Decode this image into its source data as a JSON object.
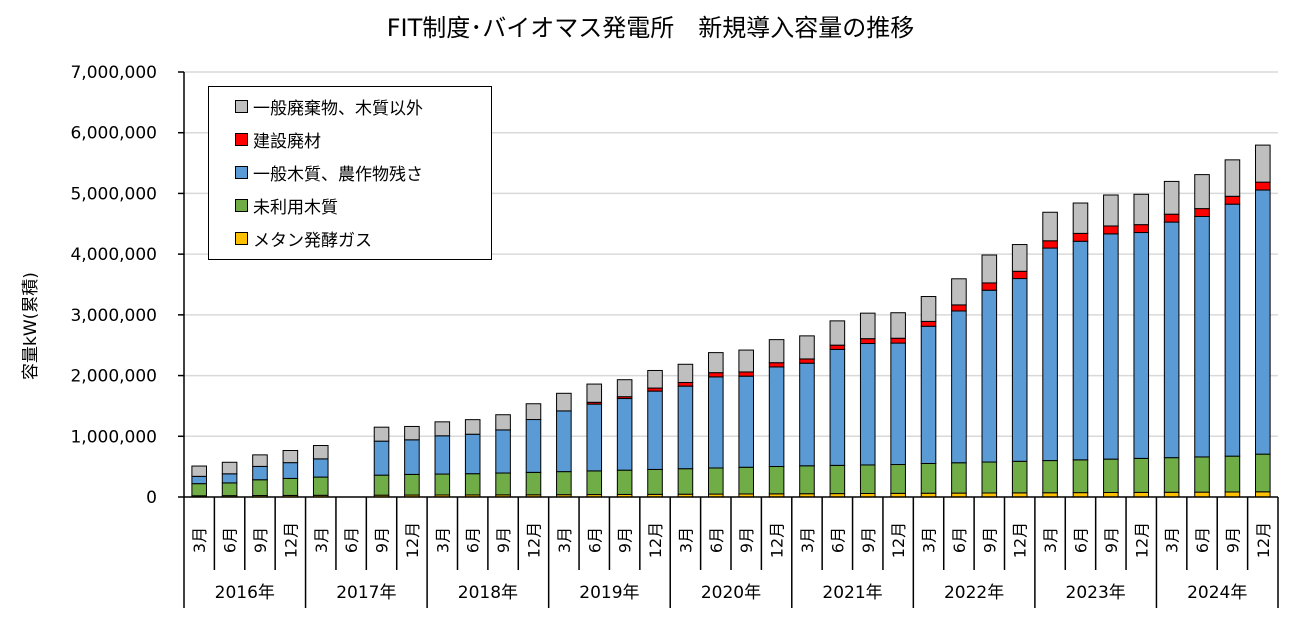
{
  "chart_data": {
    "type": "bar",
    "stacked": true,
    "title": "FIT制度･バイオマス発電所　新規導入容量の推移",
    "ylabel": "容量kW(累積)",
    "xlabel": "",
    "ylim": [
      0,
      7000000
    ],
    "yticks": [
      "0",
      "1,000,000",
      "2,000,000",
      "3,000,000",
      "4,000,000",
      "5,000,000",
      "6,000,000",
      "7,000,000"
    ],
    "grid": true,
    "legend_position": "top-left",
    "years": [
      {
        "label": "2016年",
        "months": [
          "3月",
          "6月",
          "9月",
          "12月"
        ]
      },
      {
        "label": "2017年",
        "months": [
          "3月",
          "6月",
          "9月",
          "12月"
        ]
      },
      {
        "label": "2018年",
        "months": [
          "3月",
          "6月",
          "9月",
          "12月"
        ]
      },
      {
        "label": "2019年",
        "months": [
          "3月",
          "6月",
          "9月",
          "12月"
        ]
      },
      {
        "label": "2020年",
        "months": [
          "3月",
          "6月",
          "9月",
          "12月"
        ]
      },
      {
        "label": "2021年",
        "months": [
          "3月",
          "6月",
          "9月",
          "12月"
        ]
      },
      {
        "label": "2022年",
        "months": [
          "3月",
          "6月",
          "9月",
          "12月"
        ]
      },
      {
        "label": "2023年",
        "months": [
          "3月",
          "6月",
          "9月",
          "12月"
        ]
      },
      {
        "label": "2024年",
        "months": [
          "3月",
          "6月",
          "9月",
          "12月"
        ]
      }
    ],
    "series": [
      {
        "name": "メタン発酵ガス",
        "color": "#FFC000",
        "values": [
          20000,
          22000,
          24000,
          26000,
          28000,
          null,
          30000,
          32000,
          33000,
          34000,
          35000,
          36000,
          38000,
          40000,
          42000,
          44000,
          46000,
          48000,
          50000,
          52000,
          54000,
          56000,
          58000,
          60000,
          62000,
          64000,
          66000,
          68000,
          70000,
          72000,
          74000,
          76000,
          78000,
          80000,
          83000,
          86000
        ]
      },
      {
        "name": "未利用木質",
        "color": "#70AD47",
        "values": [
          200000,
          210000,
          260000,
          280000,
          300000,
          null,
          330000,
          340000,
          345000,
          350000,
          360000,
          370000,
          380000,
          390000,
          400000,
          410000,
          420000,
          430000,
          440000,
          450000,
          460000,
          465000,
          470000,
          475000,
          490000,
          500000,
          510000,
          520000,
          530000,
          540000,
          550000,
          560000,
          570000,
          580000,
          590000,
          620000
        ]
      },
      {
        "name": "一般木質、農作物残さ",
        "color": "#5B9BD5",
        "values": [
          120000,
          150000,
          220000,
          260000,
          300000,
          null,
          560000,
          570000,
          630000,
          650000,
          710000,
          870000,
          1000000,
          1100000,
          1180000,
          1290000,
          1360000,
          1500000,
          1500000,
          1640000,
          1690000,
          1910000,
          2000000,
          2000000,
          2260000,
          2500000,
          2830000,
          3010000,
          3500000,
          3600000,
          3710000,
          3720000,
          3880000,
          3960000,
          4150000,
          4350000
        ]
      },
      {
        "name": "建設廃材",
        "color": "#FF0000",
        "values": [
          null,
          null,
          null,
          null,
          null,
          null,
          null,
          null,
          null,
          null,
          null,
          null,
          null,
          30000,
          30000,
          50000,
          60000,
          70000,
          70000,
          70000,
          70000,
          70000,
          80000,
          80000,
          80000,
          100000,
          120000,
          120000,
          120000,
          130000,
          130000,
          130000,
          130000,
          130000,
          130000,
          130000
        ]
      },
      {
        "name": "一般廃棄物、木質以外",
        "color": "#BFBFBF",
        "values": [
          170000,
          190000,
          190000,
          200000,
          220000,
          null,
          230000,
          220000,
          230000,
          240000,
          250000,
          260000,
          290000,
          300000,
          280000,
          290000,
          300000,
          330000,
          360000,
          380000,
          380000,
          400000,
          420000,
          420000,
          410000,
          430000,
          460000,
          440000,
          470000,
          500000,
          510000,
          500000,
          540000,
          560000,
          600000,
          610000
        ]
      }
    ]
  }
}
